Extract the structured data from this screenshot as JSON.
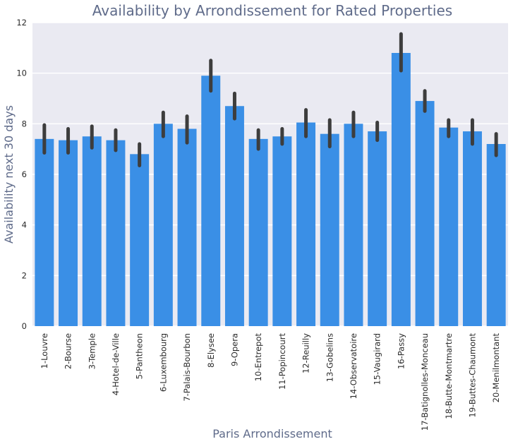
{
  "chart_data": {
    "type": "bar",
    "title": "Availability by Arrondissement for Rated Properties",
    "xlabel": "Paris Arrondissement",
    "ylabel": "Availability next 30 days",
    "ylim": [
      0,
      12
    ],
    "yticks": [
      0,
      2,
      4,
      6,
      8,
      10,
      12
    ],
    "grid": true,
    "categories": [
      "1-Louvre",
      "2-Bourse",
      "3-Temple",
      "4-Hotel-de-Ville",
      "5-Pantheon",
      "6-Luxembourg",
      "7-Palais-Bourbon",
      "8-Elysee",
      "9-Opera",
      "10-Entrepot",
      "11-Popincourt",
      "12-Reuilly",
      "13-Gobelins",
      "14-Observatoire",
      "15-Vaugirard",
      "16-Passy",
      "17-Batignolles-Monceau",
      "18-Butte-Montmartre",
      "19-Buttes-Chaumont",
      "20-Menilmontant"
    ],
    "values": [
      7.4,
      7.35,
      7.5,
      7.35,
      6.8,
      8.0,
      7.8,
      9.9,
      8.7,
      7.4,
      7.5,
      8.05,
      7.6,
      8.0,
      7.7,
      10.8,
      8.9,
      7.85,
      7.7,
      7.2
    ],
    "error_low": [
      6.85,
      6.85,
      7.05,
      6.95,
      6.35,
      7.5,
      7.25,
      9.3,
      8.2,
      7.0,
      7.2,
      7.5,
      7.1,
      7.5,
      7.35,
      10.1,
      8.5,
      7.5,
      7.2,
      6.75
    ],
    "error_high": [
      7.95,
      7.8,
      7.9,
      7.75,
      7.2,
      8.45,
      8.3,
      10.5,
      9.2,
      7.75,
      7.8,
      8.55,
      8.15,
      8.45,
      8.05,
      11.55,
      9.3,
      8.15,
      8.15,
      7.6
    ],
    "colors": {
      "bar": "#3a8fe6",
      "error_bar": "#3d3d3d",
      "plot_background": "#eaeaf2",
      "grid": "#ffffff",
      "text": "#5f6b8a"
    }
  }
}
